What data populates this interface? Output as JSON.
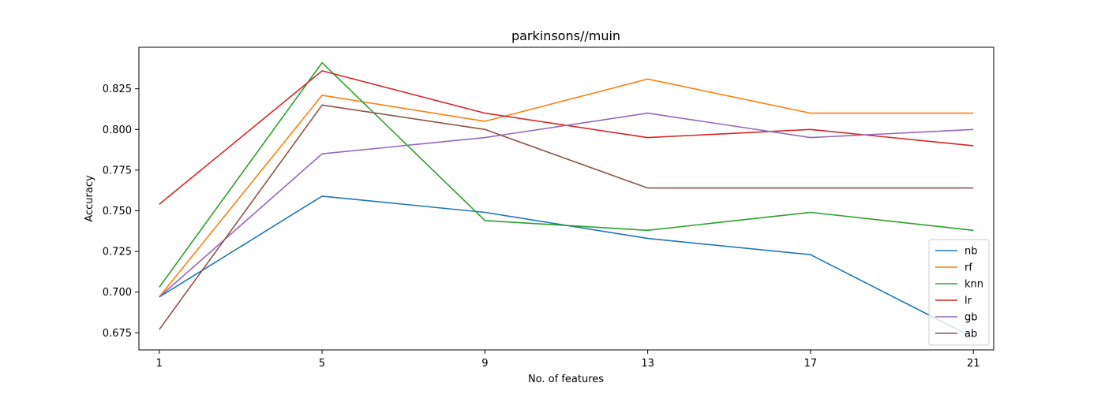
{
  "chart_data": {
    "type": "line",
    "title": "parkinsons//muin",
    "xlabel": "No. of features",
    "ylabel": "Accuracy",
    "x": [
      1,
      5,
      9,
      13,
      17,
      21
    ],
    "xlim": [
      0.5,
      21.5
    ],
    "ylim": [
      0.6645,
      0.8505
    ],
    "yticks": [
      0.675,
      0.7,
      0.725,
      0.75,
      0.775,
      0.8,
      0.825
    ],
    "ytick_labels": [
      "0.675",
      "0.700",
      "0.725",
      "0.750",
      "0.775",
      "0.800",
      "0.825"
    ],
    "xtick_labels": [
      "1",
      "5",
      "9",
      "13",
      "17",
      "21"
    ],
    "grid": false,
    "legend_position": "lower-right",
    "series": [
      {
        "name": "nb",
        "color": "#1f77b4",
        "values": [
          0.697,
          0.759,
          0.749,
          0.733,
          0.723,
          0.672
        ]
      },
      {
        "name": "rf",
        "color": "#ff7f0e",
        "values": [
          0.697,
          0.821,
          0.805,
          0.831,
          0.81,
          0.81
        ]
      },
      {
        "name": "knn",
        "color": "#2ca02c",
        "values": [
          0.703,
          0.841,
          0.744,
          0.738,
          0.749,
          0.738
        ]
      },
      {
        "name": "lr",
        "color": "#d62728",
        "values": [
          0.754,
          0.836,
          0.81,
          0.795,
          0.8,
          0.79
        ]
      },
      {
        "name": "gb",
        "color": "#9467bd",
        "values": [
          0.697,
          0.785,
          0.795,
          0.81,
          0.795,
          0.8
        ]
      },
      {
        "name": "ab",
        "color": "#8c564b",
        "values": [
          0.677,
          0.815,
          0.8,
          0.764,
          0.764,
          0.764
        ]
      }
    ]
  }
}
